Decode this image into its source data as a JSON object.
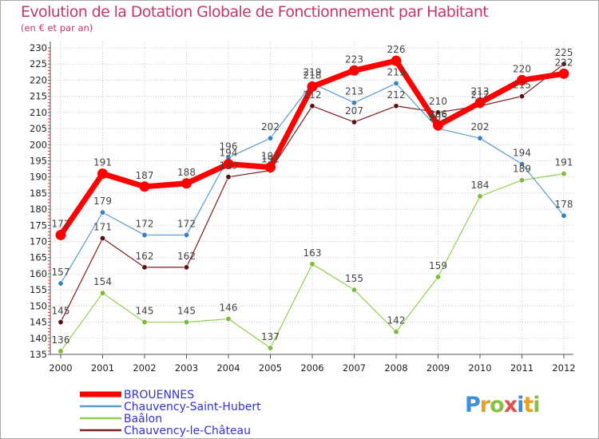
{
  "title": "Evolution de la Dotation Globale de Fonctionnement par Habitant",
  "subtitle": "(en € et par an)",
  "brand": {
    "p": "P",
    "r": "r",
    "o": "o",
    "x": "x",
    "i": "i",
    "t": "t",
    "i2": "i"
  },
  "colors": {
    "axis_text": "#222222",
    "grid": "#cccccc",
    "border": "#aaaaaa"
  },
  "chart_data": {
    "type": "line",
    "title": "Evolution de la Dotation Globale de Fonctionnement par Habitant",
    "subtitle": "(en € et par an)",
    "xlabel": "",
    "ylabel": "",
    "ylim": [
      135,
      230
    ],
    "y_ticks": [
      135,
      140,
      145,
      150,
      155,
      160,
      165,
      170,
      175,
      180,
      185,
      190,
      195,
      200,
      205,
      210,
      215,
      220,
      225,
      230
    ],
    "categories": [
      "2000",
      "2001",
      "2002",
      "2003",
      "2004",
      "2005",
      "2006",
      "2007",
      "2008",
      "2009",
      "2010",
      "2011",
      "2012"
    ],
    "grid": true,
    "legend_position": "bottom-left",
    "series": [
      {
        "name": "Baâlon",
        "color": "#92d050",
        "dot": "#7bbb3a",
        "width": 1.2,
        "values": [
          136,
          154,
          145,
          145,
          146,
          137,
          163,
          155,
          142,
          159,
          184,
          189,
          191
        ]
      },
      {
        "name": "Chauvency-le-Château",
        "color": "#7a2020",
        "dot": "#5a1010",
        "width": 1.2,
        "values": [
          145,
          171,
          162,
          162,
          190,
          192,
          212,
          207,
          212,
          210,
          212,
          215,
          225
        ]
      },
      {
        "name": "Chauvency-Saint-Hubert",
        "color": "#5a9bd0",
        "dot": "#3b7fc0",
        "width": 1.2,
        "values": [
          157,
          179,
          172,
          172,
          196,
          202,
          219,
          213,
          219,
          205,
          202,
          194,
          178
        ]
      },
      {
        "name": "BROUENNES",
        "color": "#ff0000",
        "dot": "#ff0000",
        "width": 7,
        "values": [
          172,
          191,
          187,
          188,
          194,
          193,
          218,
          223,
          226,
          206,
          213,
          220,
          222
        ]
      }
    ],
    "legend_order": [
      "BROUENNES",
      "Chauvency-Saint-Hubert",
      "Baâlon",
      "Chauvency-le-Château"
    ]
  }
}
